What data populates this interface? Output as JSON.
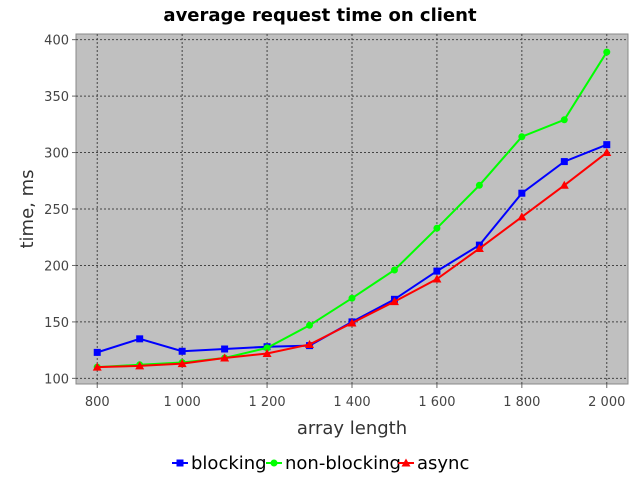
{
  "chart_data": {
    "type": "line",
    "title": "average request time on client",
    "xlabel": "array length",
    "ylabel": "time, ms",
    "x": [
      800,
      900,
      1000,
      1100,
      1200,
      1300,
      1400,
      1500,
      1600,
      1700,
      1800,
      1900,
      2000
    ],
    "xlim": [
      750,
      2050
    ],
    "ylim": [
      95,
      405
    ],
    "xticks": [
      800,
      1000,
      1200,
      1400,
      1600,
      1800,
      2000
    ],
    "xtick_labels": [
      "800",
      "1 000",
      "1 200",
      "1 400",
      "1 600",
      "1 800",
      "2 000"
    ],
    "yticks": [
      100,
      150,
      200,
      250,
      300,
      350,
      400
    ],
    "ytick_labels": [
      "100",
      "150",
      "200",
      "250",
      "300",
      "350",
      "400"
    ],
    "grid": true,
    "legend_position": "bottom",
    "background": "#c0c0c0",
    "series": [
      {
        "name": "blocking",
        "color": "#0000ff",
        "marker": "square",
        "values": [
          123,
          135,
          124,
          126,
          128,
          129,
          150,
          170,
          195,
          218,
          264,
          292,
          307
        ]
      },
      {
        "name": "non-blocking",
        "color": "#00ff00",
        "marker": "circle",
        "values": [
          110,
          112,
          114,
          118,
          127,
          147,
          171,
          196,
          233,
          271,
          314,
          329,
          389
        ]
      },
      {
        "name": "async",
        "color": "#ff0000",
        "marker": "triangle",
        "values": [
          110,
          111,
          113,
          118,
          122,
          130,
          149,
          168,
          188,
          215,
          243,
          271,
          300
        ]
      }
    ]
  }
}
